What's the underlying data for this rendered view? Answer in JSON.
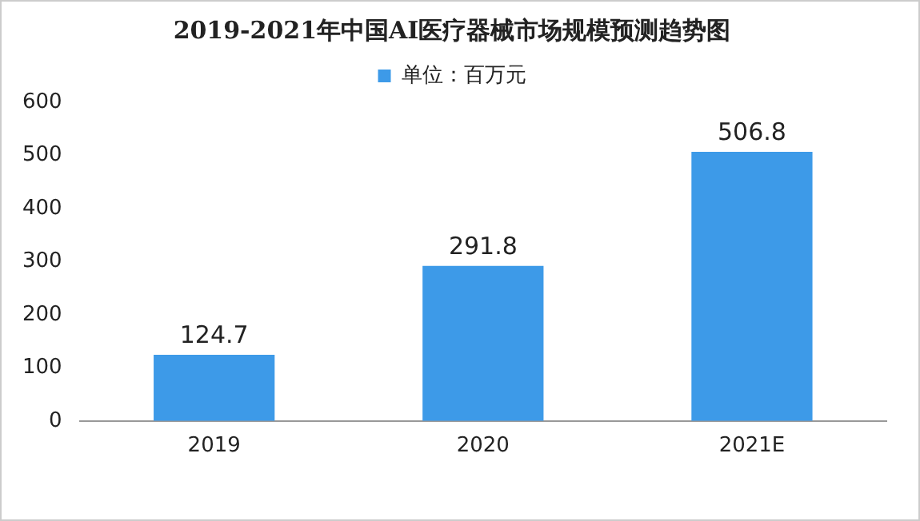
{
  "chart_data": {
    "type": "bar",
    "title": "2019-2021年中国AI医疗器械市场规模预测趋势图",
    "categories": [
      "2019",
      "2020",
      "2021E"
    ],
    "series": [
      {
        "name": "单位：百万元",
        "color": "#3d9ae8",
        "values": [
          124.7,
          291.8,
          506.8
        ]
      }
    ],
    "ylim": [
      0,
      600
    ],
    "yticks": [
      0,
      100,
      200,
      300,
      400,
      500,
      600
    ],
    "grid": false,
    "legend": "top",
    "data_labels": true
  }
}
